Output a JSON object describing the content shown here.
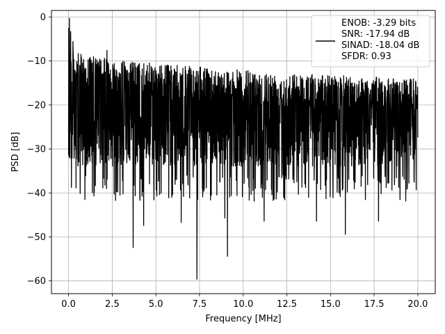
{
  "chart_data": {
    "type": "line",
    "title": "",
    "xlabel": "Frequency [MHz]",
    "ylabel": "PSD [dB]",
    "xlim": [
      -0.98,
      21.0
    ],
    "ylim": [
      -62.9,
      1.5
    ],
    "xticks": [
      0.0,
      2.5,
      5.0,
      7.5,
      10.0,
      12.5,
      15.0,
      17.5,
      20.0
    ],
    "xtick_labels": [
      "0.0",
      "2.5",
      "5.0",
      "7.5",
      "10.0",
      "12.5",
      "15.0",
      "17.5",
      "20.0"
    ],
    "yticks": [
      0,
      -10,
      -20,
      -30,
      -40,
      -50,
      -60
    ],
    "ytick_labels": [
      "0",
      "−10",
      "−20",
      "−30",
      "−40",
      "−50",
      "−60"
    ],
    "grid": true,
    "legend_position": "upper-right",
    "legend": {
      "lines": [
        "ENOB: -3.29 bits",
        "SNR: -17.94 dB",
        "SINAD: -18.04 dB",
        "SFDR: 0.93"
      ]
    },
    "series_color": "#000000",
    "series": [
      {
        "x_start": 0.0,
        "x_end": 20.0,
        "peaks": [
          {
            "x": 0.05,
            "y": -0.2
          },
          {
            "x": 0.12,
            "y": -3.2
          },
          {
            "x": 0.25,
            "y": -5.5
          },
          {
            "x": 2.2,
            "y": -7.5
          },
          {
            "x": 3.7,
            "y": -52.5
          },
          {
            "x": 7.35,
            "y": -59.7
          },
          {
            "x": 9.1,
            "y": -54.5
          },
          {
            "x": 6.45,
            "y": -46.8
          },
          {
            "x": 4.3,
            "y": -47.5
          },
          {
            "x": 8.95,
            "y": -45.8
          },
          {
            "x": 11.2,
            "y": -46.5
          },
          {
            "x": 15.85,
            "y": -49.5
          },
          {
            "x": 14.2,
            "y": -46.5
          },
          {
            "x": 17.75,
            "y": -46.5
          }
        ],
        "envelope": {
          "upper_start": -7,
          "upper_end": -14,
          "band_low": -36
        }
      }
    ]
  }
}
